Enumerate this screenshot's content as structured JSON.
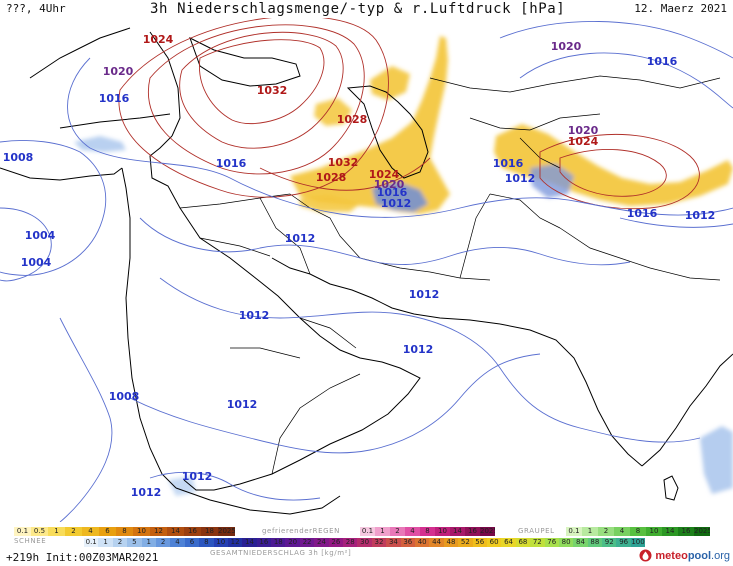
{
  "header": {
    "left": "???, 4Uhr",
    "title": "3h Niederschlagsmenge/-typ & r.Luftdruck [hPa]",
    "date": "12. Maerz 2021"
  },
  "colors": {
    "background": "#ffffff",
    "coast": "#000000",
    "iso_low": "#5a6fd0",
    "iso_high": "#b0302a",
    "label_low": "#2333c8",
    "label_mid": "#6a2a8a",
    "label_high": "#b01818",
    "snow": "#f0c020",
    "snow_light": "#f6dd7a",
    "rain": "#9bb8e8",
    "rain_dark": "#5c79d2"
  },
  "isobars": {
    "labels": [
      {
        "text": "1024",
        "cls": "high"
      },
      {
        "text": "1020",
        "cls": "mid"
      },
      {
        "text": "1016",
        "cls": "low"
      },
      {
        "text": "1032",
        "cls": "high"
      },
      {
        "text": "1028",
        "cls": "high"
      },
      {
        "text": "1008",
        "cls": "low"
      },
      {
        "text": "1016",
        "cls": "low"
      },
      {
        "text": "1032",
        "cls": "high"
      },
      {
        "text": "1028",
        "cls": "high"
      },
      {
        "text": "1024",
        "cls": "high"
      },
      {
        "text": "1020",
        "cls": "mid"
      },
      {
        "text": "1016",
        "cls": "low"
      },
      {
        "text": "1012",
        "cls": "low"
      },
      {
        "text": "1004",
        "cls": "low"
      },
      {
        "text": "1004",
        "cls": "low"
      },
      {
        "text": "1012",
        "cls": "low"
      },
      {
        "text": "1012",
        "cls": "low"
      },
      {
        "text": "1012",
        "cls": "low"
      },
      {
        "text": "1012",
        "cls": "low"
      },
      {
        "text": "1008",
        "cls": "low"
      },
      {
        "text": "1012",
        "cls": "low"
      },
      {
        "text": "1012",
        "cls": "low"
      },
      {
        "text": "1012",
        "cls": "low"
      },
      {
        "text": "1020",
        "cls": "mid"
      },
      {
        "text": "1016",
        "cls": "low"
      },
      {
        "text": "1020",
        "cls": "mid"
      },
      {
        "text": "1024",
        "cls": "high"
      },
      {
        "text": "1016",
        "cls": "low"
      },
      {
        "text": "1012",
        "cls": "low"
      },
      {
        "text": "1016",
        "cls": "low"
      },
      {
        "text": "1012",
        "cls": "low"
      }
    ]
  },
  "legend": {
    "snow": {
      "label": "SCHNEE",
      "values": [
        "0.1",
        "0.5",
        "1",
        "2",
        "4",
        "6",
        "8",
        "10",
        "12",
        "14",
        "16",
        "18",
        "2025+"
      ],
      "colors": [
        "#fff4c0",
        "#fde98a",
        "#f8dc5a",
        "#f2ca30",
        "#eeb820",
        "#e8a010",
        "#e08a10",
        "#d47410",
        "#c46010",
        "#b04e10",
        "#9c4010",
        "#8a3410",
        "#762a10"
      ]
    },
    "freezing": {
      "label": "gefrierenderREGEN",
      "values": [
        "0.1",
        "1",
        "2",
        "4",
        "8",
        "10",
        "14",
        "16",
        "2025+"
      ],
      "colors": [
        "#f6c8e0",
        "#f0a0cc",
        "#e878b8",
        "#e050a4",
        "#d43090",
        "#c0207c",
        "#a8186a",
        "#901058",
        "#780848"
      ]
    },
    "graupel": {
      "label": "GRAUPEL",
      "values": [
        "0.1",
        "1",
        "2",
        "4",
        "8",
        "10",
        "14",
        "16",
        "2025+"
      ],
      "colors": [
        "#d8f4c0",
        "#b8eaa0",
        "#98de80",
        "#78d060",
        "#58c040",
        "#40ae30",
        "#2c9824",
        "#1c801a",
        "#106a10"
      ]
    },
    "rain": {
      "label": "GESAMTNIEDERSCHLAG 3h [kg/m²]",
      "values": [
        "0.1",
        "1",
        "2",
        "5",
        "1",
        "2",
        "4",
        "6",
        "8",
        "10",
        "12",
        "14",
        "16",
        "18",
        "20",
        "22",
        "24",
        "26",
        "28",
        "30",
        "32",
        "34",
        "36",
        "40",
        "44",
        "48",
        "52",
        "56",
        "60",
        "64",
        "68",
        "72",
        "76",
        "80",
        "84",
        "88",
        "92",
        "96",
        "100"
      ],
      "colors": [
        "#e6f0fa",
        "#cfe2f6",
        "#b6d2f0",
        "#9cc0ea",
        "#82aee4",
        "#6898de",
        "#4e82d6",
        "#3a6ccc",
        "#2c56c0",
        "#2640b4",
        "#2230a4",
        "#2a2094",
        "#3a1c94",
        "#4c1a94",
        "#5e1894",
        "#701890",
        "#82188a",
        "#941884",
        "#a6207c",
        "#b42c6c",
        "#c03c5c",
        "#ca4e4c",
        "#d4603e",
        "#dc7432",
        "#e28628",
        "#e89a20",
        "#ecac1c",
        "#f0be1c",
        "#f0cc20",
        "#e8d628",
        "#d6dc30",
        "#c0e03c",
        "#a8e04c",
        "#90dc5c",
        "#78d46c",
        "#60ca7c",
        "#4cbe88",
        "#3cb090",
        "#2ea296"
      ]
    },
    "run": "+219h  Init:00Z03MAR2021",
    "brand_left": "meteo",
    "brand_right": "pool",
    "brand_tld": ".org"
  }
}
